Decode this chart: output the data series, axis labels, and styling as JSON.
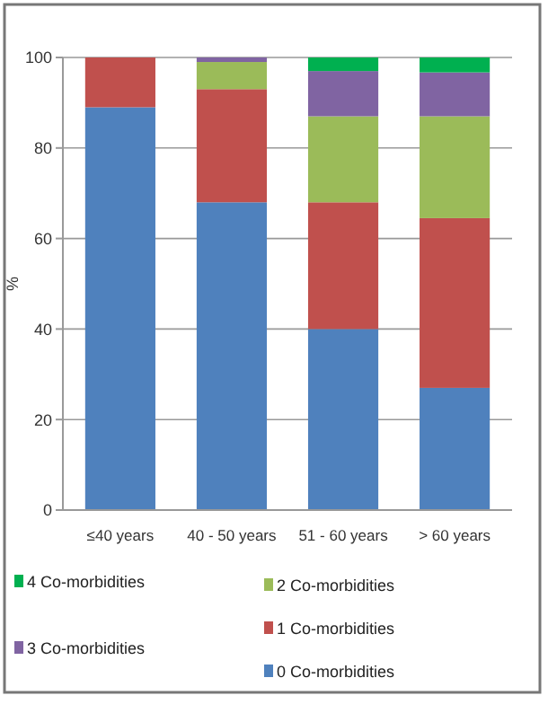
{
  "chart_data": {
    "type": "bar",
    "stacked": true,
    "ylabel": "%",
    "categories": [
      "≤40 years",
      "40 - 50 years",
      "51 - 60 years",
      "> 60 years"
    ],
    "series": [
      {
        "name": "0  Co-morbidities",
        "color": "#4f81bd",
        "values": [
          89,
          68,
          40,
          27
        ]
      },
      {
        "name": "1  Co-morbidities",
        "color": "#c0504d",
        "values": [
          11,
          25,
          28,
          37.5
        ]
      },
      {
        "name": "2  Co-morbidities",
        "color": "#9bbb59",
        "values": [
          0,
          6,
          19,
          22.5
        ]
      },
      {
        "name": "3  Co-morbidities",
        "color": "#8064a2",
        "values": [
          0,
          1,
          10,
          9.7
        ]
      },
      {
        "name": "4  Co-morbidities",
        "color": "#00b050",
        "values": [
          0,
          0,
          3,
          3.3
        ]
      }
    ],
    "ylim": [
      0,
      100
    ],
    "yticks": [
      0,
      20,
      40,
      60,
      80,
      100
    ],
    "grid": "y",
    "legend": "bottom"
  }
}
